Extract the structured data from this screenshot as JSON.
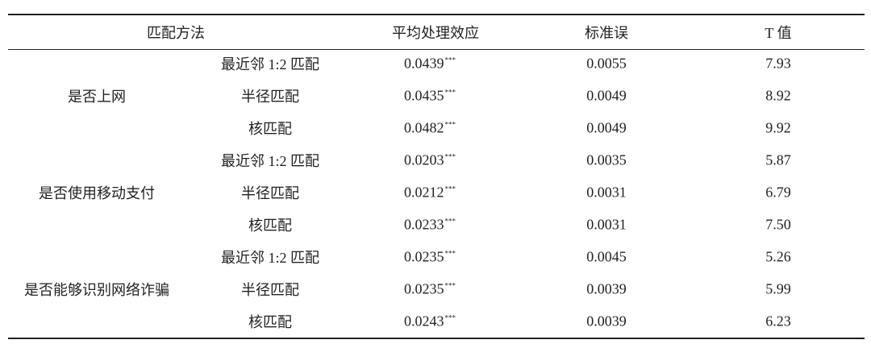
{
  "table": {
    "header": {
      "method": "匹配方法",
      "ate": "平均处理效应",
      "se": "标准误",
      "t": "T 值"
    },
    "groups": [
      {
        "label": "是否上网",
        "rows": [
          {
            "method": "最近邻 1:2 匹配",
            "ate": "0.0439",
            "sig": "***",
            "se": "0.0055",
            "t": "7.93"
          },
          {
            "method": "半径匹配",
            "ate": "0.0435",
            "sig": "***",
            "se": "0.0049",
            "t": "8.92"
          },
          {
            "method": "核匹配",
            "ate": "0.0482",
            "sig": "***",
            "se": "0.0049",
            "t": "9.92"
          }
        ]
      },
      {
        "label": "是否使用移动支付",
        "rows": [
          {
            "method": "最近邻 1:2 匹配",
            "ate": "0.0203",
            "sig": "***",
            "se": "0.0035",
            "t": "5.87"
          },
          {
            "method": "半径匹配",
            "ate": "0.0212",
            "sig": "***",
            "se": "0.0031",
            "t": "6.79"
          },
          {
            "method": "核匹配",
            "ate": "0.0233",
            "sig": "***",
            "se": "0.0031",
            "t": "7.50"
          }
        ]
      },
      {
        "label": "是否能够识别网络诈骗",
        "rows": [
          {
            "method": "最近邻 1:2 匹配",
            "ate": "0.0235",
            "sig": "***",
            "se": "0.0045",
            "t": "5.26"
          },
          {
            "method": "半径匹配",
            "ate": "0.0235",
            "sig": "***",
            "se": "0.0039",
            "t": "5.99"
          },
          {
            "method": "核匹配",
            "ate": "0.0243",
            "sig": "***",
            "se": "0.0039",
            "t": "6.23"
          }
        ]
      }
    ]
  }
}
